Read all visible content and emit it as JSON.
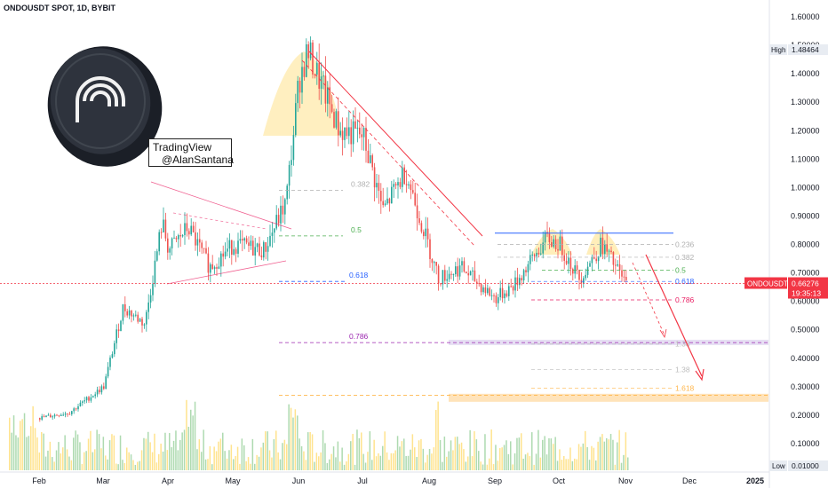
{
  "header": {
    "symbol_title": "ONDOUSDT SPOT, 1D, BYBIT"
  },
  "watermark": {
    "line1": "TradingView",
    "line2": "@AlanSantana"
  },
  "colors": {
    "up": "#26a69a",
    "down": "#ef5350",
    "accent_red": "#f23645",
    "pink": "#e91e63",
    "fib_blue": "#2962ff",
    "fib_green": "#4caf50",
    "fib_purple": "#9c27b0",
    "highlight": "#ffe082"
  },
  "icons": {
    "logo": "ondo-coin-logo-icon"
  },
  "chart_data": {
    "type": "candlestick",
    "title": "ONDOUSDT SPOT, 1D, BYBIT",
    "y_ticks": [
      "1.60000",
      "1.50000",
      "1.40000",
      "1.30000",
      "1.20000",
      "1.10000",
      "1.00000",
      "0.90000",
      "0.80000",
      "0.70000",
      "0.60000",
      "0.50000",
      "0.40000",
      "0.30000",
      "0.20000",
      "0.10000"
    ],
    "ylim": [
      0,
      1.65
    ],
    "x_ticks": [
      "Feb",
      "Mar",
      "Apr",
      "May",
      "Jun",
      "Jul",
      "Aug",
      "Sep",
      "Oct",
      "Nov",
      "Dec",
      "2025"
    ],
    "price_path": [
      [
        "Feb",
        0.19
      ],
      [
        "Feb 15",
        0.21
      ],
      [
        "Mar",
        0.3
      ],
      [
        "Mar 10",
        0.58
      ],
      [
        "Mar 20",
        0.52
      ],
      [
        "Mar 28",
        0.88
      ],
      [
        "Apr",
        0.78
      ],
      [
        "Apr 10",
        0.86
      ],
      [
        "Apr 20",
        0.72
      ],
      [
        "May",
        0.8
      ],
      [
        "May 15",
        0.78
      ],
      [
        "May 25",
        0.95
      ],
      [
        "Jun",
        1.38
      ],
      [
        "Jun 5",
        1.48
      ],
      [
        "Jun 20",
        1.2
      ],
      [
        "Jul",
        1.18
      ],
      [
        "Jul 10",
        0.92
      ],
      [
        "Jul 20",
        1.06
      ],
      [
        "Aug",
        0.78
      ],
      [
        "Aug 5",
        0.68
      ],
      [
        "Aug 15",
        0.72
      ],
      [
        "Sep",
        0.61
      ],
      [
        "Sep 10",
        0.66
      ],
      [
        "Sep 25",
        0.82
      ],
      [
        "Oct",
        0.8
      ],
      [
        "Oct 10",
        0.68
      ],
      [
        "Oct 20",
        0.8
      ],
      [
        "Nov",
        0.66
      ]
    ],
    "fib_left": [
      {
        "label": "0.382",
        "value": 0.99
      },
      {
        "label": "0.5",
        "value": 0.83
      },
      {
        "label": "0.618",
        "value": 0.67
      },
      {
        "label": "0.786",
        "value": 0.455
      },
      {
        "label": "1.618",
        "value": 0.27
      }
    ],
    "fib_right": [
      {
        "label": "0.236",
        "value": 0.8
      },
      {
        "label": "0.382",
        "value": 0.755
      },
      {
        "label": "0.5",
        "value": 0.71
      },
      {
        "label": "0.618",
        "value": 0.67
      },
      {
        "label": "0.786",
        "value": 0.605
      },
      {
        "label": "1.38",
        "value": 0.45
      },
      {
        "label": "1.38",
        "value": 0.36
      },
      {
        "label": "1.618",
        "value": 0.295
      }
    ],
    "resistance": 0.84,
    "last_price": 0.66276,
    "high": 1.48464,
    "low": 0.01,
    "price_label": {
      "symbol": "ONDOUSDT",
      "value": "0.66276",
      "countdown": "19:35:13"
    },
    "high_label": {
      "tag": "High",
      "value": "1.48464"
    },
    "low_label": {
      "tag": "Low",
      "value": "0.01000"
    }
  }
}
